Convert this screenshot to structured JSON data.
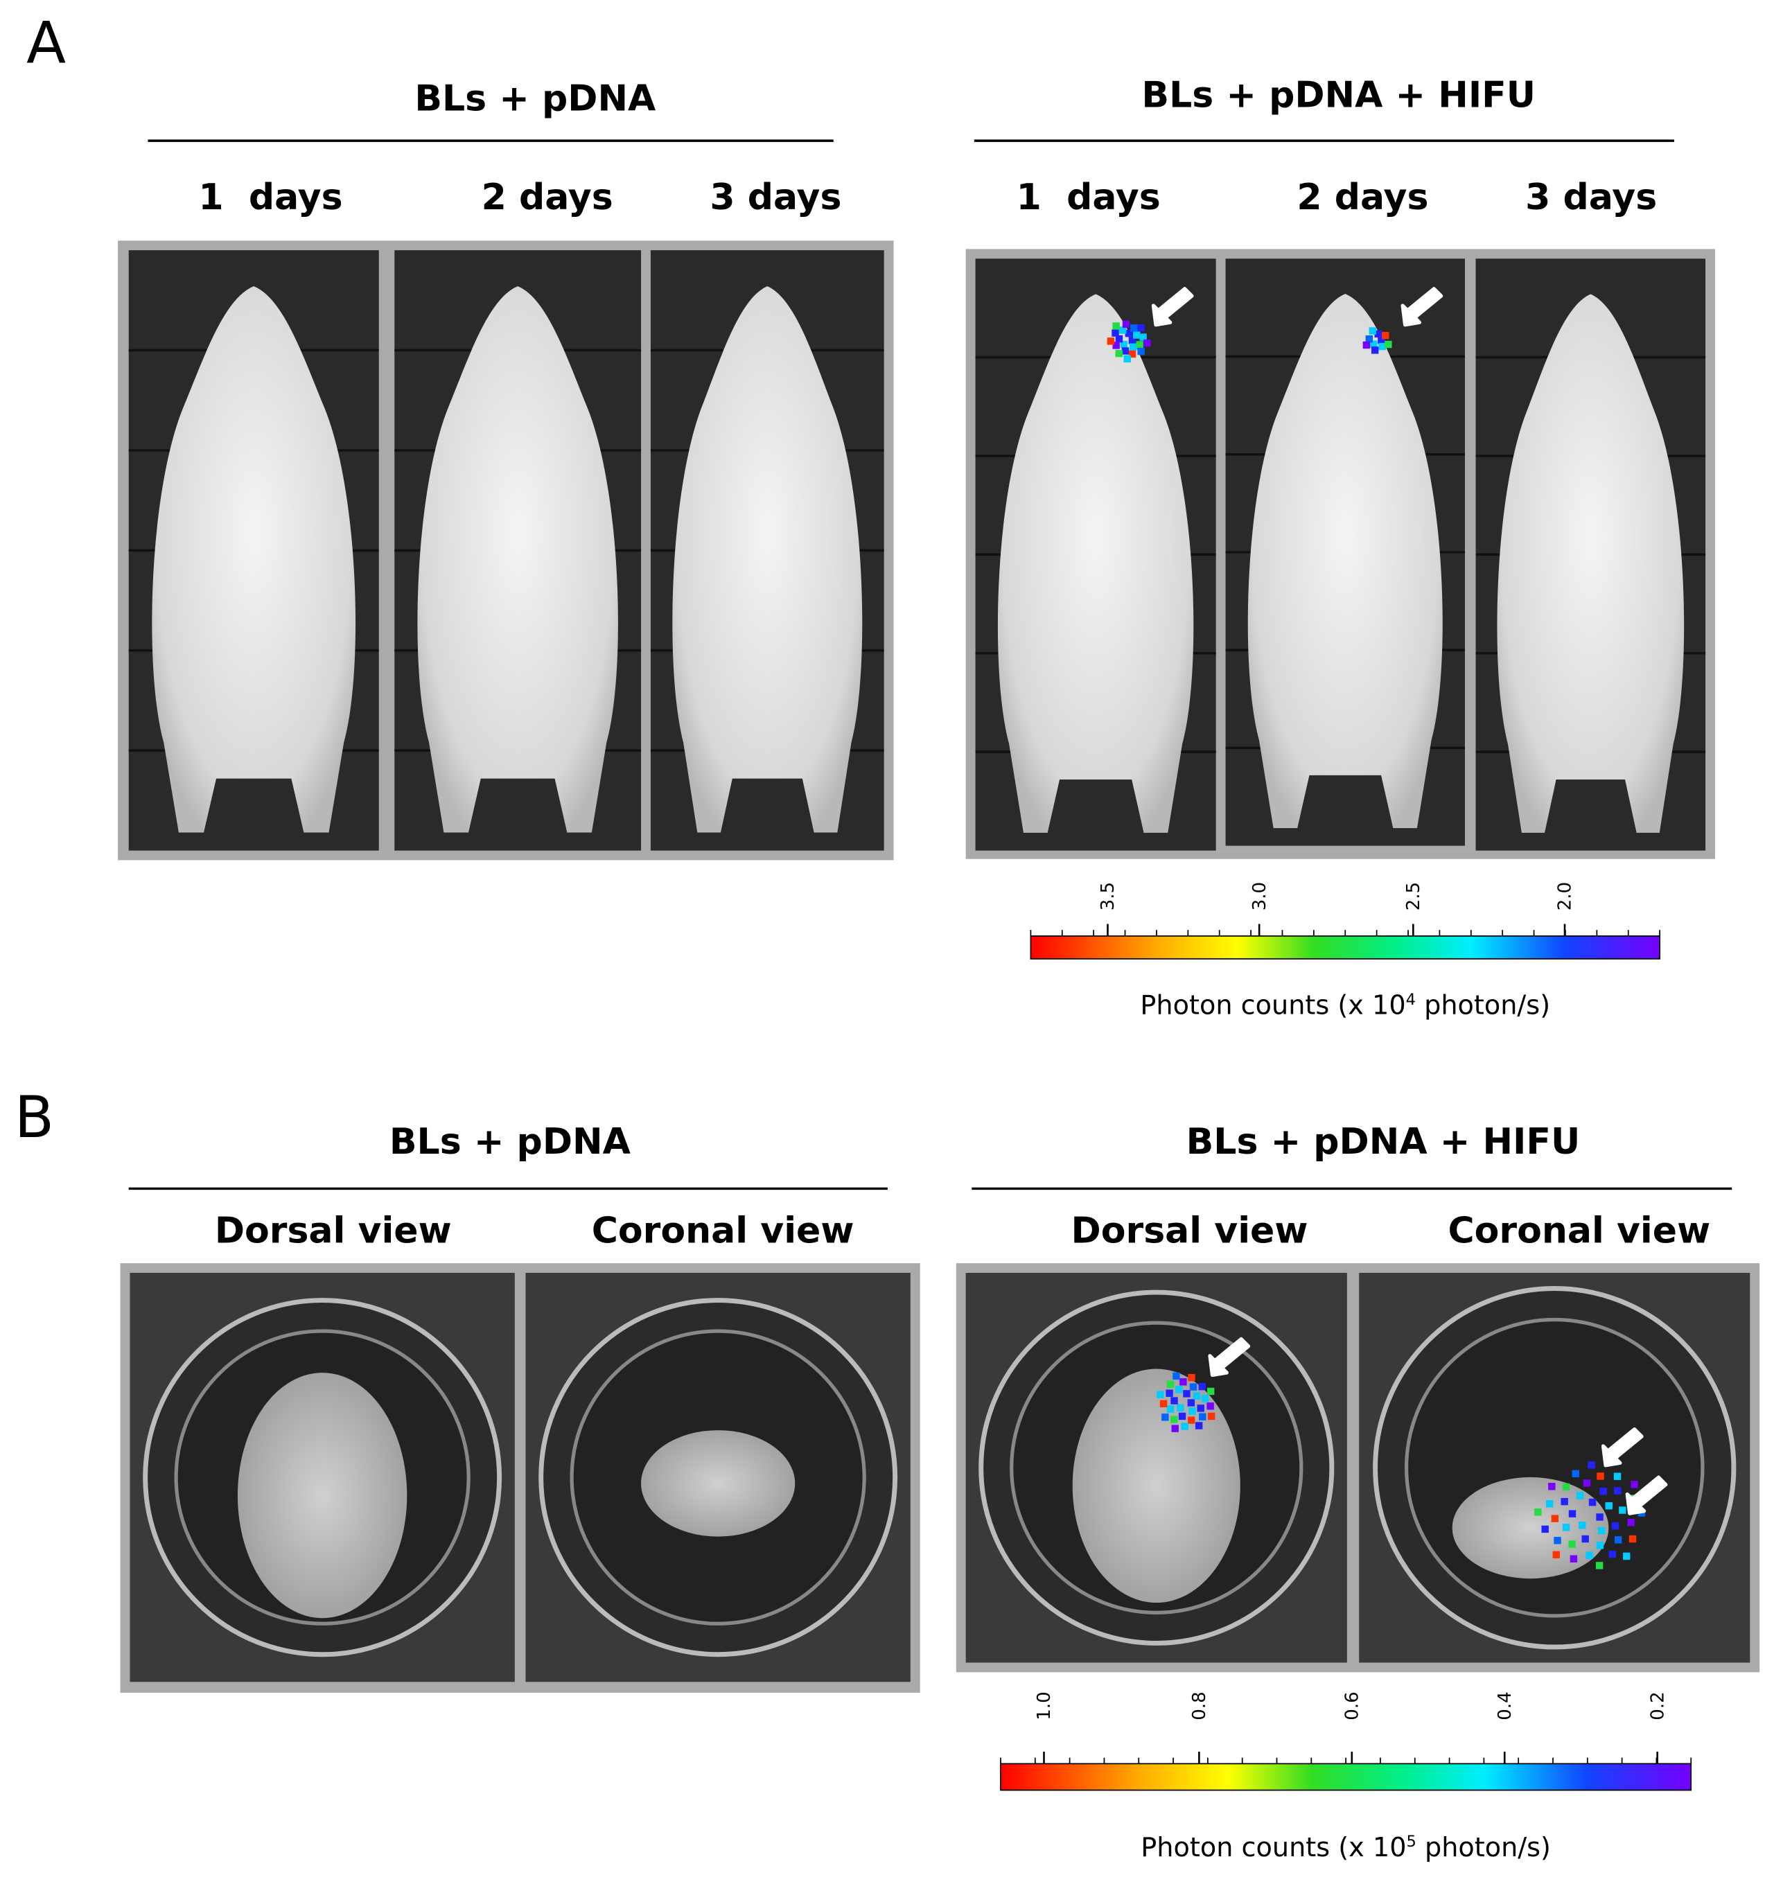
{
  "panel_a": {
    "label": "A",
    "groups": [
      {
        "title": "BLs + pDNA",
        "columns": [
          "1  days",
          "2 days",
          "3 days"
        ]
      },
      {
        "title": "BLs + pDNA + HIFU",
        "columns": [
          "1  days",
          "2 days",
          "3 days"
        ]
      }
    ],
    "colorbar": {
      "ticks": [
        "3.5",
        "3.0",
        "2.5",
        "2.0"
      ],
      "caption": {
        "prefix": "Photon counts (x 10",
        "exponent": "4",
        "suffix": " photon/s)"
      }
    }
  },
  "panel_b": {
    "label": "B",
    "groups": [
      {
        "title": "BLs + pDNA",
        "columns": [
          "Dorsal view",
          "Coronal view"
        ]
      },
      {
        "title": "BLs + pDNA + HIFU",
        "columns": [
          "Dorsal view",
          "Coronal view"
        ]
      }
    ],
    "colorbar": {
      "ticks": [
        "1.0",
        "0.8",
        "0.6",
        "0.4",
        "0.2"
      ],
      "caption": {
        "prefix": "Photon counts (x 10",
        "exponent": "5",
        "suffix": " photon/s)"
      }
    }
  }
}
